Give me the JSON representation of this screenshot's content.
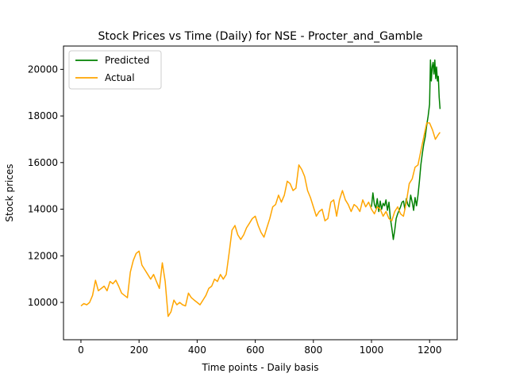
{
  "chart_data": {
    "type": "line",
    "title": "Stock Prices vs Time (Daily) for NSE - Procter_and_Gamble",
    "xlabel": "Time points - Daily basis",
    "ylabel": "Stock prices",
    "xlim": [
      -60,
      1295
    ],
    "ylim": [
      8400,
      21000
    ],
    "xticks": [
      0,
      200,
      400,
      600,
      800,
      1000,
      1200
    ],
    "xtick_labels": [
      "0",
      "200",
      "400",
      "600",
      "800",
      "1000",
      "1200"
    ],
    "yticks": [
      10000,
      12000,
      14000,
      16000,
      18000,
      20000
    ],
    "ytick_labels": [
      "10000",
      "12000",
      "14000",
      "16000",
      "18000",
      "20000"
    ],
    "grid": false,
    "legend_position": "top-left",
    "series": [
      {
        "name": "Predicted",
        "color": "#008000",
        "x": [
          1000,
          1005,
          1010,
          1015,
          1020,
          1025,
          1030,
          1035,
          1040,
          1045,
          1050,
          1055,
          1060,
          1065,
          1070,
          1075,
          1080,
          1085,
          1090,
          1095,
          1100,
          1105,
          1110,
          1115,
          1120,
          1125,
          1130,
          1135,
          1140,
          1145,
          1150,
          1155,
          1160,
          1165,
          1170,
          1175,
          1180,
          1185,
          1190,
          1195,
          1200,
          1203,
          1206,
          1209,
          1212,
          1215,
          1218,
          1221,
          1224,
          1227,
          1230,
          1233,
          1236
        ],
        "values": [
          14100,
          14700,
          14200,
          14050,
          14450,
          13900,
          14350,
          14000,
          14250,
          14150,
          14400,
          13950,
          14300,
          13600,
          13200,
          12700,
          13100,
          13600,
          13800,
          13950,
          14100,
          14300,
          14350,
          14000,
          14450,
          14200,
          14100,
          14600,
          14300,
          13950,
          14500,
          14150,
          14600,
          15200,
          15900,
          16400,
          16800,
          17100,
          17600,
          18000,
          18500,
          20400,
          19500,
          20100,
          20300,
          19800,
          20400,
          19600,
          20100,
          19500,
          19700,
          18800,
          18300
        ]
      },
      {
        "name": "Actual",
        "color": "#FFA500",
        "x": [
          0,
          10,
          20,
          30,
          40,
          50,
          60,
          70,
          80,
          90,
          100,
          110,
          120,
          130,
          140,
          150,
          160,
          170,
          180,
          190,
          200,
          210,
          220,
          230,
          240,
          250,
          260,
          270,
          280,
          290,
          300,
          310,
          320,
          330,
          340,
          350,
          360,
          370,
          380,
          390,
          400,
          410,
          420,
          430,
          440,
          450,
          460,
          470,
          480,
          490,
          500,
          510,
          520,
          530,
          540,
          550,
          560,
          570,
          580,
          590,
          600,
          610,
          620,
          630,
          640,
          650,
          660,
          670,
          680,
          690,
          700,
          710,
          720,
          730,
          740,
          750,
          760,
          770,
          780,
          790,
          800,
          810,
          820,
          830,
          840,
          850,
          860,
          870,
          880,
          890,
          900,
          910,
          920,
          930,
          940,
          950,
          960,
          970,
          980,
          990,
          1000,
          1010,
          1020,
          1030,
          1040,
          1050,
          1060,
          1070,
          1080,
          1090,
          1100,
          1110,
          1120,
          1130,
          1140,
          1150,
          1160,
          1170,
          1180,
          1190,
          1200,
          1210,
          1220,
          1230,
          1236
        ],
        "values": [
          9850,
          9950,
          9900,
          10000,
          10300,
          10950,
          10500,
          10600,
          10700,
          10500,
          10900,
          10800,
          10950,
          10700,
          10400,
          10300,
          10200,
          11300,
          11800,
          12100,
          12200,
          11600,
          11400,
          11200,
          11000,
          11200,
          10900,
          10600,
          11700,
          10900,
          9400,
          9600,
          10100,
          9900,
          10000,
          9900,
          9850,
          10400,
          10200,
          10100,
          10000,
          9900,
          10100,
          10300,
          10600,
          10700,
          11000,
          10900,
          11200,
          11000,
          11200,
          12100,
          13100,
          13300,
          12900,
          12700,
          12900,
          13200,
          13400,
          13600,
          13700,
          13300,
          13000,
          12800,
          13200,
          13600,
          14100,
          14200,
          14600,
          14300,
          14600,
          15200,
          15100,
          14800,
          14900,
          15900,
          15700,
          15400,
          14800,
          14500,
          14100,
          13700,
          13900,
          14000,
          13500,
          13600,
          14300,
          14400,
          13700,
          14400,
          14800,
          14400,
          14200,
          13900,
          14200,
          14100,
          13900,
          14400,
          14100,
          14300,
          14000,
          13800,
          14100,
          14000,
          13700,
          13900,
          13600,
          13500,
          13900,
          14100,
          13800,
          13700,
          14300,
          15100,
          15300,
          15800,
          15900,
          16500,
          17100,
          17700,
          17700,
          17400,
          17000,
          17200,
          17300
        ]
      }
    ]
  }
}
